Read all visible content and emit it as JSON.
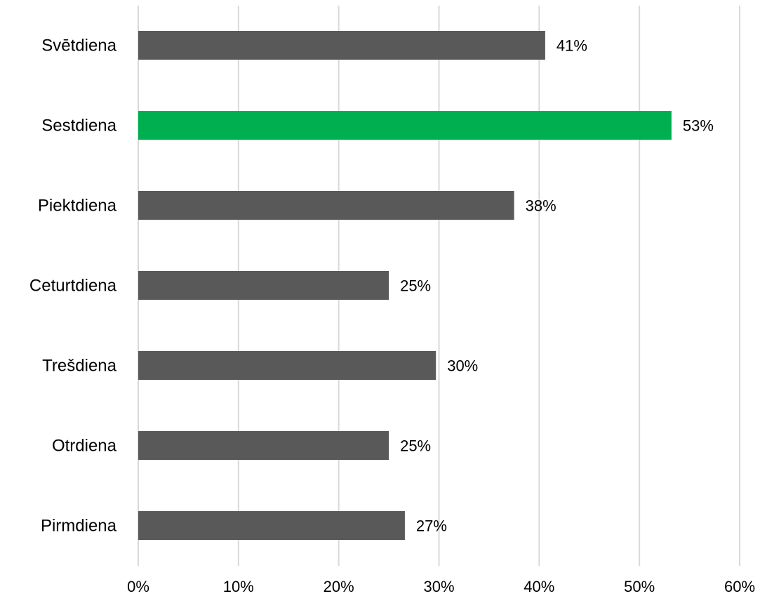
{
  "chart_data": {
    "type": "bar",
    "orientation": "horizontal",
    "categories": [
      "Svētdiena",
      "Sestdiena",
      "Piektdiena",
      "Ceturtdiena",
      "Trešdiena",
      "Otrdiena",
      "Pirmdiena"
    ],
    "values": [
      40.6,
      53.2,
      37.5,
      25.0,
      29.7,
      25.0,
      26.6
    ],
    "data_labels": [
      "41%",
      "53%",
      "38%",
      "25%",
      "30%",
      "25%",
      "27%"
    ],
    "highlight_category": "Sestdiena",
    "xlim": [
      0,
      60
    ],
    "x_ticks": [
      0,
      10,
      20,
      30,
      40,
      50,
      60
    ],
    "x_tick_labels": [
      "0%",
      "10%",
      "20%",
      "30%",
      "40%",
      "50%",
      "60%"
    ],
    "title": "",
    "xlabel": "",
    "ylabel": "",
    "grid": "vertical",
    "legend": "none"
  },
  "colors": {
    "bar_default": "#595959",
    "bar_highlight": "#00b050",
    "gridline": "#d9d9d9",
    "text": "#000000"
  }
}
